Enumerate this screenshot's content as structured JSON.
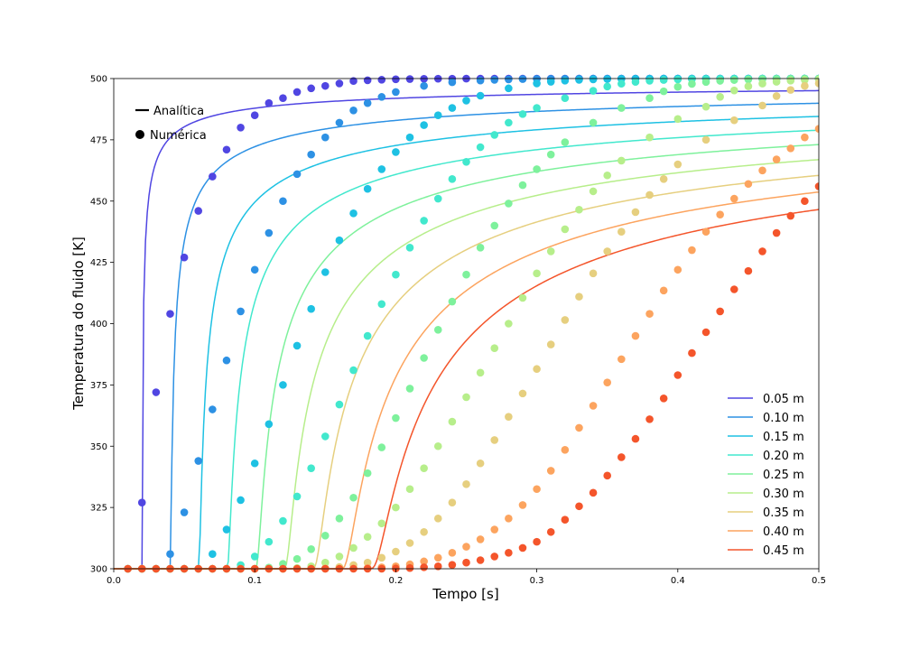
{
  "chart_data": {
    "type": "line",
    "xlabel": "Tempo [s]",
    "ylabel": "Temperatura do fluido [K]",
    "xlim": [
      0.0,
      0.5
    ],
    "ylim": [
      300,
      500
    ],
    "xticks": [
      0.0,
      0.1,
      0.2,
      0.3,
      0.4,
      0.5
    ],
    "xtick_labels": [
      "0.0",
      "0.1",
      "0.2",
      "0.3",
      "0.4",
      "0.5"
    ],
    "yticks": [
      300,
      325,
      350,
      375,
      400,
      425,
      450,
      475,
      500
    ],
    "ytick_labels": [
      "300",
      "325",
      "350",
      "375",
      "400",
      "425",
      "450",
      "475",
      "500"
    ],
    "grid": false,
    "style_legend": {
      "placement": "top-left",
      "entries": [
        {
          "label": "Analítica",
          "marker": "line"
        },
        {
          "label": "Numérica",
          "marker": "dot"
        }
      ]
    },
    "series_legend": {
      "placement": "bottom-right"
    },
    "series": [
      {
        "name": "0.05 m",
        "color": "#5046e2",
        "delay": 0.02,
        "tau": 0.0225,
        "x": [
          0.01,
          0.02,
          0.03,
          0.04,
          0.05,
          0.06,
          0.07,
          0.08,
          0.09,
          0.1,
          0.11,
          0.12,
          0.13,
          0.14,
          0.15,
          0.16,
          0.17,
          0.18,
          0.19,
          0.2
        ],
        "y": [
          300,
          327,
          372,
          404,
          427,
          446,
          460,
          471,
          480,
          485,
          490,
          492,
          494.5,
          496,
          497,
          498,
          499,
          499.3,
          499.5,
          499.7
        ]
      },
      {
        "name": "0.10 m",
        "color": "#2d91e4",
        "delay": 0.04,
        "tau": 0.045,
        "x": [
          0.04,
          0.05,
          0.06,
          0.07,
          0.08,
          0.09,
          0.1,
          0.11,
          0.12,
          0.13,
          0.14,
          0.15,
          0.16,
          0.17,
          0.18,
          0.19,
          0.2,
          0.22,
          0.24,
          0.26
        ],
        "y": [
          306,
          323,
          344,
          365,
          385,
          405,
          422,
          437,
          450,
          461,
          469,
          476,
          482,
          487,
          490,
          492.5,
          494.5,
          497,
          498.5,
          499.2
        ]
      },
      {
        "name": "0.15 m",
        "color": "#1ec1e3",
        "delay": 0.06,
        "tau": 0.0675,
        "x": [
          0.06,
          0.07,
          0.08,
          0.09,
          0.1,
          0.11,
          0.12,
          0.13,
          0.14,
          0.15,
          0.16,
          0.17,
          0.18,
          0.19,
          0.2,
          0.21,
          0.22,
          0.23,
          0.24,
          0.25,
          0.26,
          0.28,
          0.3
        ],
        "y": [
          300,
          306,
          316,
          328,
          343,
          359,
          375,
          391,
          406,
          421,
          434,
          445,
          455,
          463,
          470,
          476,
          481,
          485,
          488,
          491,
          493,
          496,
          498
        ]
      },
      {
        "name": "0.20 m",
        "color": "#42e8cd",
        "delay": 0.08,
        "tau": 0.09,
        "x": [
          0.08,
          0.09,
          0.1,
          0.11,
          0.12,
          0.13,
          0.14,
          0.15,
          0.16,
          0.17,
          0.18,
          0.19,
          0.2,
          0.21,
          0.22,
          0.23,
          0.24,
          0.25,
          0.26,
          0.27,
          0.28,
          0.29,
          0.3,
          0.32,
          0.34
        ],
        "y": [
          300,
          301.5,
          305,
          311,
          319.5,
          329.5,
          341,
          354,
          367,
          381,
          395,
          408,
          420,
          431,
          442,
          451,
          459,
          466,
          472,
          477,
          482,
          485.5,
          488,
          492,
          495
        ]
      },
      {
        "name": "0.25 m",
        "color": "#7ef19c",
        "delay": 0.1,
        "tau": 0.1125,
        "x": [
          0.1,
          0.11,
          0.12,
          0.13,
          0.14,
          0.15,
          0.16,
          0.17,
          0.18,
          0.19,
          0.2,
          0.21,
          0.22,
          0.23,
          0.24,
          0.25,
          0.26,
          0.27,
          0.28,
          0.29,
          0.3,
          0.31,
          0.32,
          0.34,
          0.36,
          0.38
        ],
        "y": [
          300,
          300.5,
          302,
          304,
          308,
          313.5,
          320.5,
          329,
          339,
          349.5,
          361.5,
          373.5,
          386,
          397.5,
          409,
          420,
          431,
          440,
          449,
          456.5,
          463,
          469,
          474,
          482,
          488,
          492
        ]
      },
      {
        "name": "0.30 m",
        "color": "#b7ee8b",
        "delay": 0.12,
        "tau": 0.135,
        "x": [
          0.12,
          0.13,
          0.14,
          0.15,
          0.16,
          0.17,
          0.18,
          0.19,
          0.2,
          0.21,
          0.22,
          0.23,
          0.24,
          0.25,
          0.26,
          0.27,
          0.28,
          0.29,
          0.3,
          0.31,
          0.32,
          0.33,
          0.34,
          0.35,
          0.36,
          0.38,
          0.4,
          0.42
        ],
        "y": [
          300,
          300.3,
          301,
          302.5,
          305,
          308.5,
          313,
          318.5,
          325,
          332.5,
          341,
          350,
          360,
          370,
          380,
          390,
          400,
          410.5,
          420.5,
          429.5,
          438.5,
          446.5,
          454,
          460.5,
          466.5,
          476,
          483.5,
          488.5
        ]
      },
      {
        "name": "0.35 m",
        "color": "#e6cf7f",
        "delay": 0.14,
        "tau": 0.1575,
        "x": [
          0.14,
          0.15,
          0.16,
          0.17,
          0.18,
          0.19,
          0.2,
          0.21,
          0.22,
          0.23,
          0.24,
          0.25,
          0.26,
          0.27,
          0.28,
          0.29,
          0.3,
          0.31,
          0.32,
          0.33,
          0.34,
          0.35,
          0.36,
          0.37,
          0.38,
          0.39,
          0.4,
          0.42,
          0.44,
          0.46
        ],
        "y": [
          300,
          300.2,
          300.7,
          301.5,
          302.5,
          304.5,
          307,
          310.5,
          315,
          320.5,
          327,
          334.5,
          343,
          352.5,
          362,
          371.5,
          381.5,
          391.5,
          401.5,
          411,
          420.5,
          429.5,
          437.5,
          445.5,
          452.5,
          459,
          465,
          475,
          483,
          489
        ]
      },
      {
        "name": "0.40 m",
        "color": "#fca45f",
        "delay": 0.16,
        "tau": 0.18,
        "x": [
          0.16,
          0.17,
          0.18,
          0.19,
          0.2,
          0.21,
          0.22,
          0.23,
          0.24,
          0.25,
          0.26,
          0.27,
          0.28,
          0.29,
          0.3,
          0.31,
          0.32,
          0.33,
          0.34,
          0.35,
          0.36,
          0.37,
          0.38,
          0.39,
          0.4,
          0.41,
          0.42,
          0.43,
          0.44,
          0.45,
          0.46,
          0.47,
          0.48,
          0.49,
          0.5
        ],
        "y": [
          300,
          300.1,
          300.3,
          300.6,
          301,
          301.8,
          303,
          304.5,
          306.5,
          309,
          312,
          316,
          320.5,
          326,
          332.5,
          340,
          348.5,
          357.5,
          366.5,
          376,
          385.5,
          395,
          404,
          413.5,
          422,
          430,
          437.5,
          444.5,
          451,
          457,
          462.5,
          467,
          471.5,
          476,
          479.5
        ]
      },
      {
        "name": "0.45 m",
        "color": "#f4552b",
        "delay": 0.18,
        "tau": 0.2025,
        "x": [
          0.18,
          0.19,
          0.2,
          0.21,
          0.22,
          0.23,
          0.24,
          0.25,
          0.26,
          0.27,
          0.28,
          0.29,
          0.3,
          0.31,
          0.32,
          0.33,
          0.34,
          0.35,
          0.36,
          0.37,
          0.38,
          0.39,
          0.4,
          0.41,
          0.42,
          0.43,
          0.44,
          0.45,
          0.46,
          0.47,
          0.48,
          0.49,
          0.5
        ],
        "y": [
          300,
          300,
          300.1,
          300.3,
          300.6,
          301,
          301.6,
          302.5,
          303.5,
          305,
          306.5,
          308.5,
          311,
          315,
          320,
          325.5,
          331,
          338,
          345.5,
          353,
          361,
          369.5,
          379,
          388,
          396.5,
          405,
          414,
          421.5,
          429.5,
          437,
          444,
          450,
          456
        ]
      }
    ]
  }
}
